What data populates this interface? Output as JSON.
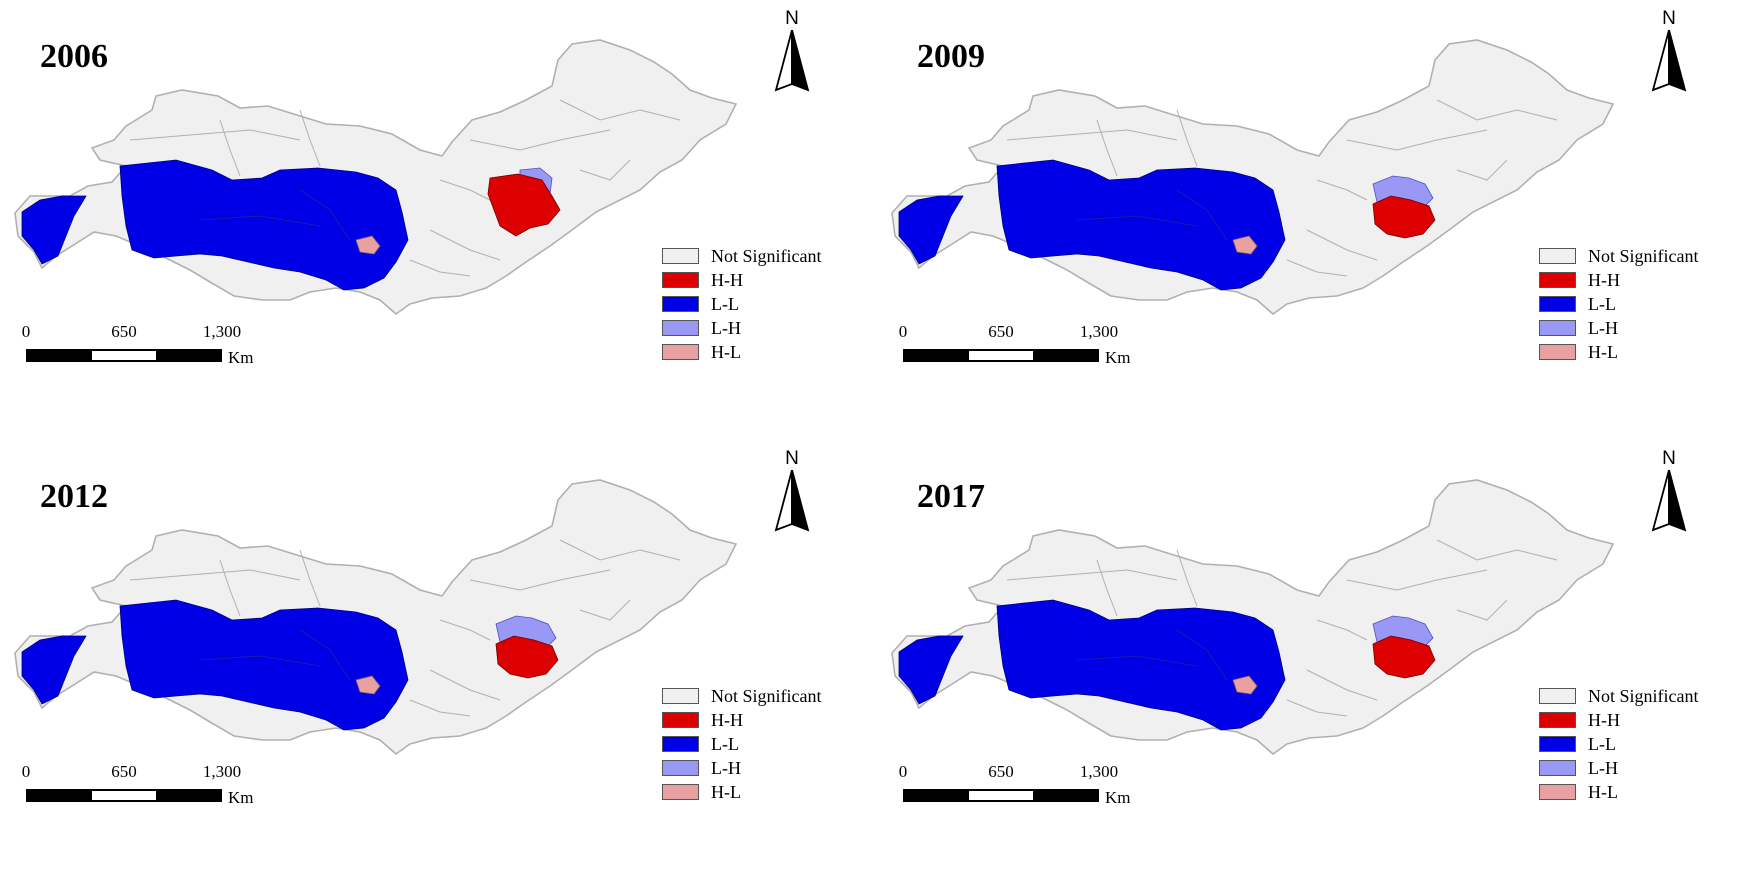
{
  "panels": [
    {
      "year": "2006",
      "hh_pos": "left",
      "lh_pos": "top-right"
    },
    {
      "year": "2009",
      "hh_pos": "bottom",
      "lh_pos": "top"
    },
    {
      "year": "2012",
      "hh_pos": "bottom",
      "lh_pos": "top"
    },
    {
      "year": "2017",
      "hh_pos": "bottom",
      "lh_pos": "top"
    }
  ],
  "north_label": "N",
  "legend": [
    {
      "label": "Not Significant",
      "color": "#f0f0f0"
    },
    {
      "label": "H-H",
      "color": "#dd0000"
    },
    {
      "label": "L-L",
      "color": "#0000e6"
    },
    {
      "label": "L-H",
      "color": "#9999f5"
    },
    {
      "label": "H-L",
      "color": "#e8a0a0"
    }
  ],
  "scale": {
    "ticks": [
      "0",
      "650",
      "1,300"
    ],
    "unit": "Km"
  },
  "colors": {
    "not_significant": "#f0f0f0",
    "border": "#b0b0b0",
    "hh": "#dd0000",
    "ll": "#0000e6",
    "lh": "#9999f5",
    "hl": "#e8a0a0"
  }
}
